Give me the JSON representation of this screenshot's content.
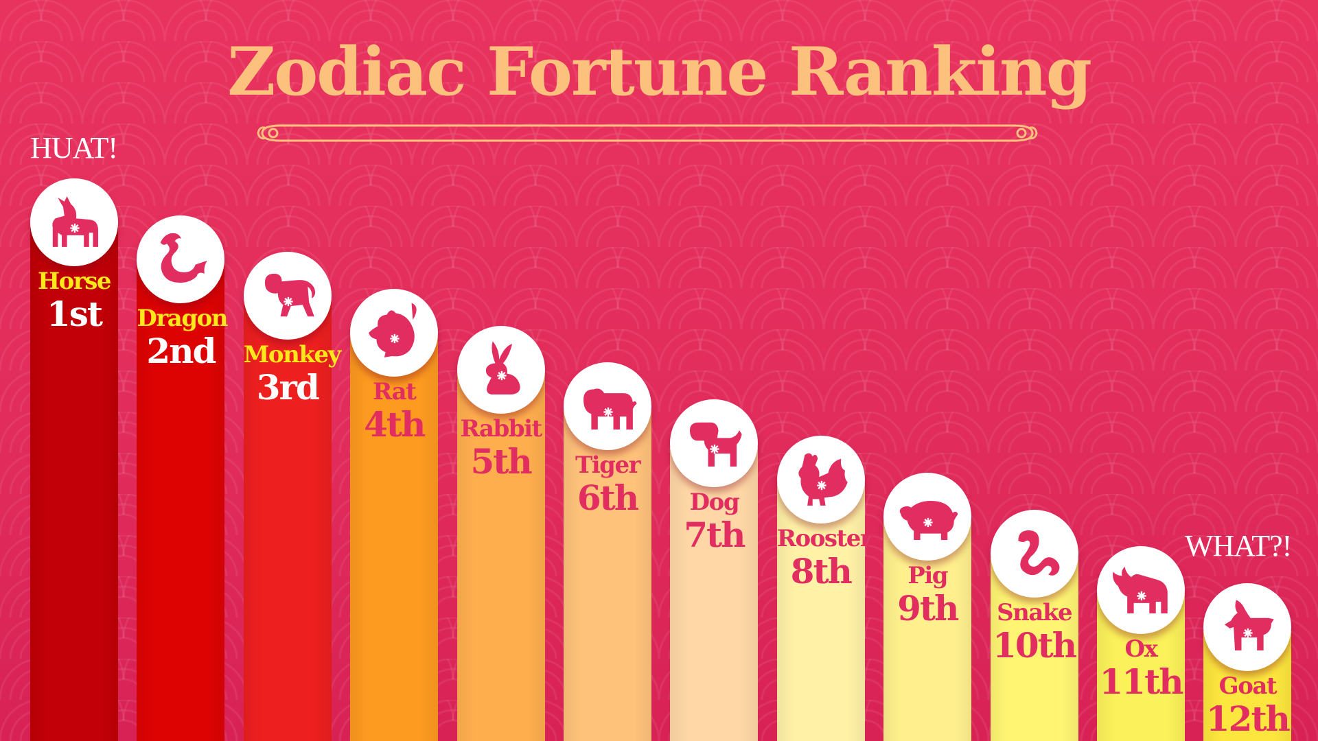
{
  "title": "Zodiac Fortune Ranking",
  "top_callout": "HUAT!",
  "bottom_callout": "WHAT?!",
  "colors": {
    "background": "#e42f5d",
    "title": "#fcc17d",
    "accent": "#e12d5f"
  },
  "chart_data": {
    "type": "bar",
    "title": "Zodiac Fortune Ranking",
    "categories": [
      "Horse",
      "Dragon",
      "Monkey",
      "Rat",
      "Rabbit",
      "Tiger",
      "Dog",
      "Rooster",
      "Pig",
      "Snake",
      "Ox",
      "Goat"
    ],
    "rank_labels": [
      "1st",
      "2nd",
      "3rd",
      "4th",
      "5th",
      "6th",
      "7th",
      "8th",
      "9th",
      "10th",
      "11th",
      "12th"
    ],
    "values": [
      1,
      2,
      3,
      4,
      5,
      6,
      7,
      8,
      9,
      10,
      11,
      12
    ],
    "order": "best-to-worst, left-to-right",
    "bar_colors": [
      "#c00006",
      "#dd0303",
      "#ed1f1f",
      "#fd9a20",
      "#ffae4e",
      "#ffc27a",
      "#ffd7a6",
      "#fff1a6",
      "#fff08d",
      "#fff573",
      "#fbf15a",
      "#fde63e"
    ],
    "icons": [
      "horse-icon",
      "dragon-icon",
      "monkey-icon",
      "rat-icon",
      "rabbit-icon",
      "tiger-icon",
      "dog-icon",
      "rooster-icon",
      "pig-icon",
      "snake-icon",
      "ox-icon",
      "goat-icon"
    ]
  }
}
